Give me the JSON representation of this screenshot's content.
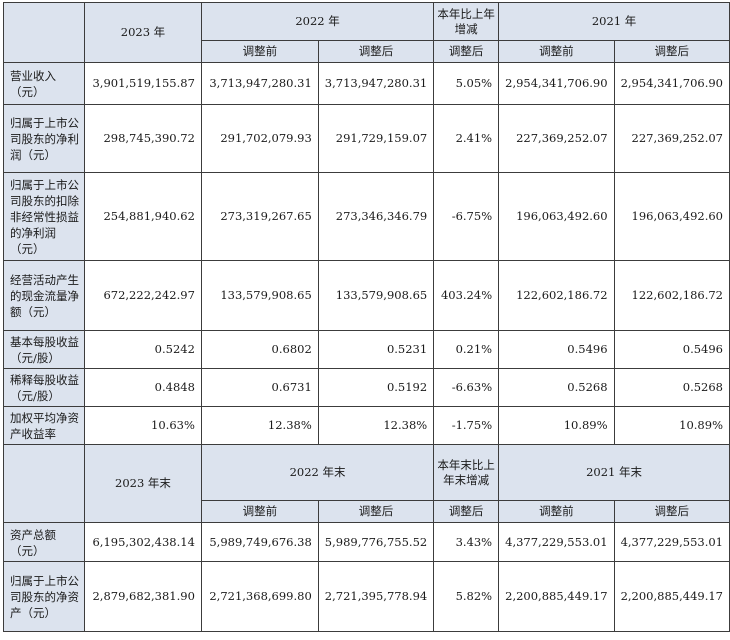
{
  "header1": {
    "year_2023": "2023 年",
    "year_2022": "2022 年",
    "change": "本年比上年增减",
    "year_2021": "2021 年",
    "before": "调整前",
    "after": "调整后"
  },
  "rows1": [
    {
      "label": "营业收入（元）",
      "v2023": "3,901,519,155.87",
      "v2022_before": "3,713,947,280.31",
      "v2022_after": "3,713,947,280.31",
      "change": "5.05%",
      "v2021_before": "2,954,341,706.90",
      "v2021_after": "2,954,341,706.90"
    },
    {
      "label": "归属于上市公司股东的净利润（元）",
      "v2023": "298,745,390.72",
      "v2022_before": "291,702,079.93",
      "v2022_after": "291,729,159.07",
      "change": "2.41%",
      "v2021_before": "227,369,252.07",
      "v2021_after": "227,369,252.07"
    },
    {
      "label": "归属于上市公司股东的扣除非经常性损益的净利润（元）",
      "v2023": "254,881,940.62",
      "v2022_before": "273,319,267.65",
      "v2022_after": "273,346,346.79",
      "change": "-6.75%",
      "v2021_before": "196,063,492.60",
      "v2021_after": "196,063,492.60"
    },
    {
      "label": "经营活动产生的现金流量净额（元）",
      "v2023": "672,222,242.97",
      "v2022_before": "133,579,908.65",
      "v2022_after": "133,579,908.65",
      "change": "403.24%",
      "v2021_before": "122,602,186.72",
      "v2021_after": "122,602,186.72"
    },
    {
      "label": "基本每股收益（元/股）",
      "v2023": "0.5242",
      "v2022_before": "0.6802",
      "v2022_after": "0.5231",
      "change": "0.21%",
      "v2021_before": "0.5496",
      "v2021_after": "0.5496"
    },
    {
      "label": "稀释每股收益（元/股）",
      "v2023": "0.4848",
      "v2022_before": "0.6731",
      "v2022_after": "0.5192",
      "change": "-6.63%",
      "v2021_before": "0.5268",
      "v2021_after": "0.5268"
    },
    {
      "label": "加权平均净资产收益率",
      "v2023": "10.63%",
      "v2022_before": "12.38%",
      "v2022_after": "12.38%",
      "change": "-1.75%",
      "v2021_before": "10.89%",
      "v2021_after": "10.89%"
    }
  ],
  "header2": {
    "year_2023_end": "2023 年末",
    "year_2022_end": "2022 年末",
    "change": "本年末比上年末增减",
    "year_2021_end": "2021 年末",
    "before": "调整前",
    "after": "调整后"
  },
  "rows2": [
    {
      "label": "资产总额（元）",
      "v2023": "6,195,302,438.14",
      "v2022_before": "5,989,749,676.38",
      "v2022_after": "5,989,776,755.52",
      "change": "3.43%",
      "v2021_before": "4,377,229,553.01",
      "v2021_after": "4,377,229,553.01"
    },
    {
      "label": "归属于上市公司股东的净资产（元）",
      "v2023": "2,879,682,381.90",
      "v2022_before": "2,721,368,699.80",
      "v2022_after": "2,721,395,778.94",
      "change": "5.82%",
      "v2021_before": "2,200,885,449.17",
      "v2021_after": "2,200,885,449.17"
    }
  ]
}
